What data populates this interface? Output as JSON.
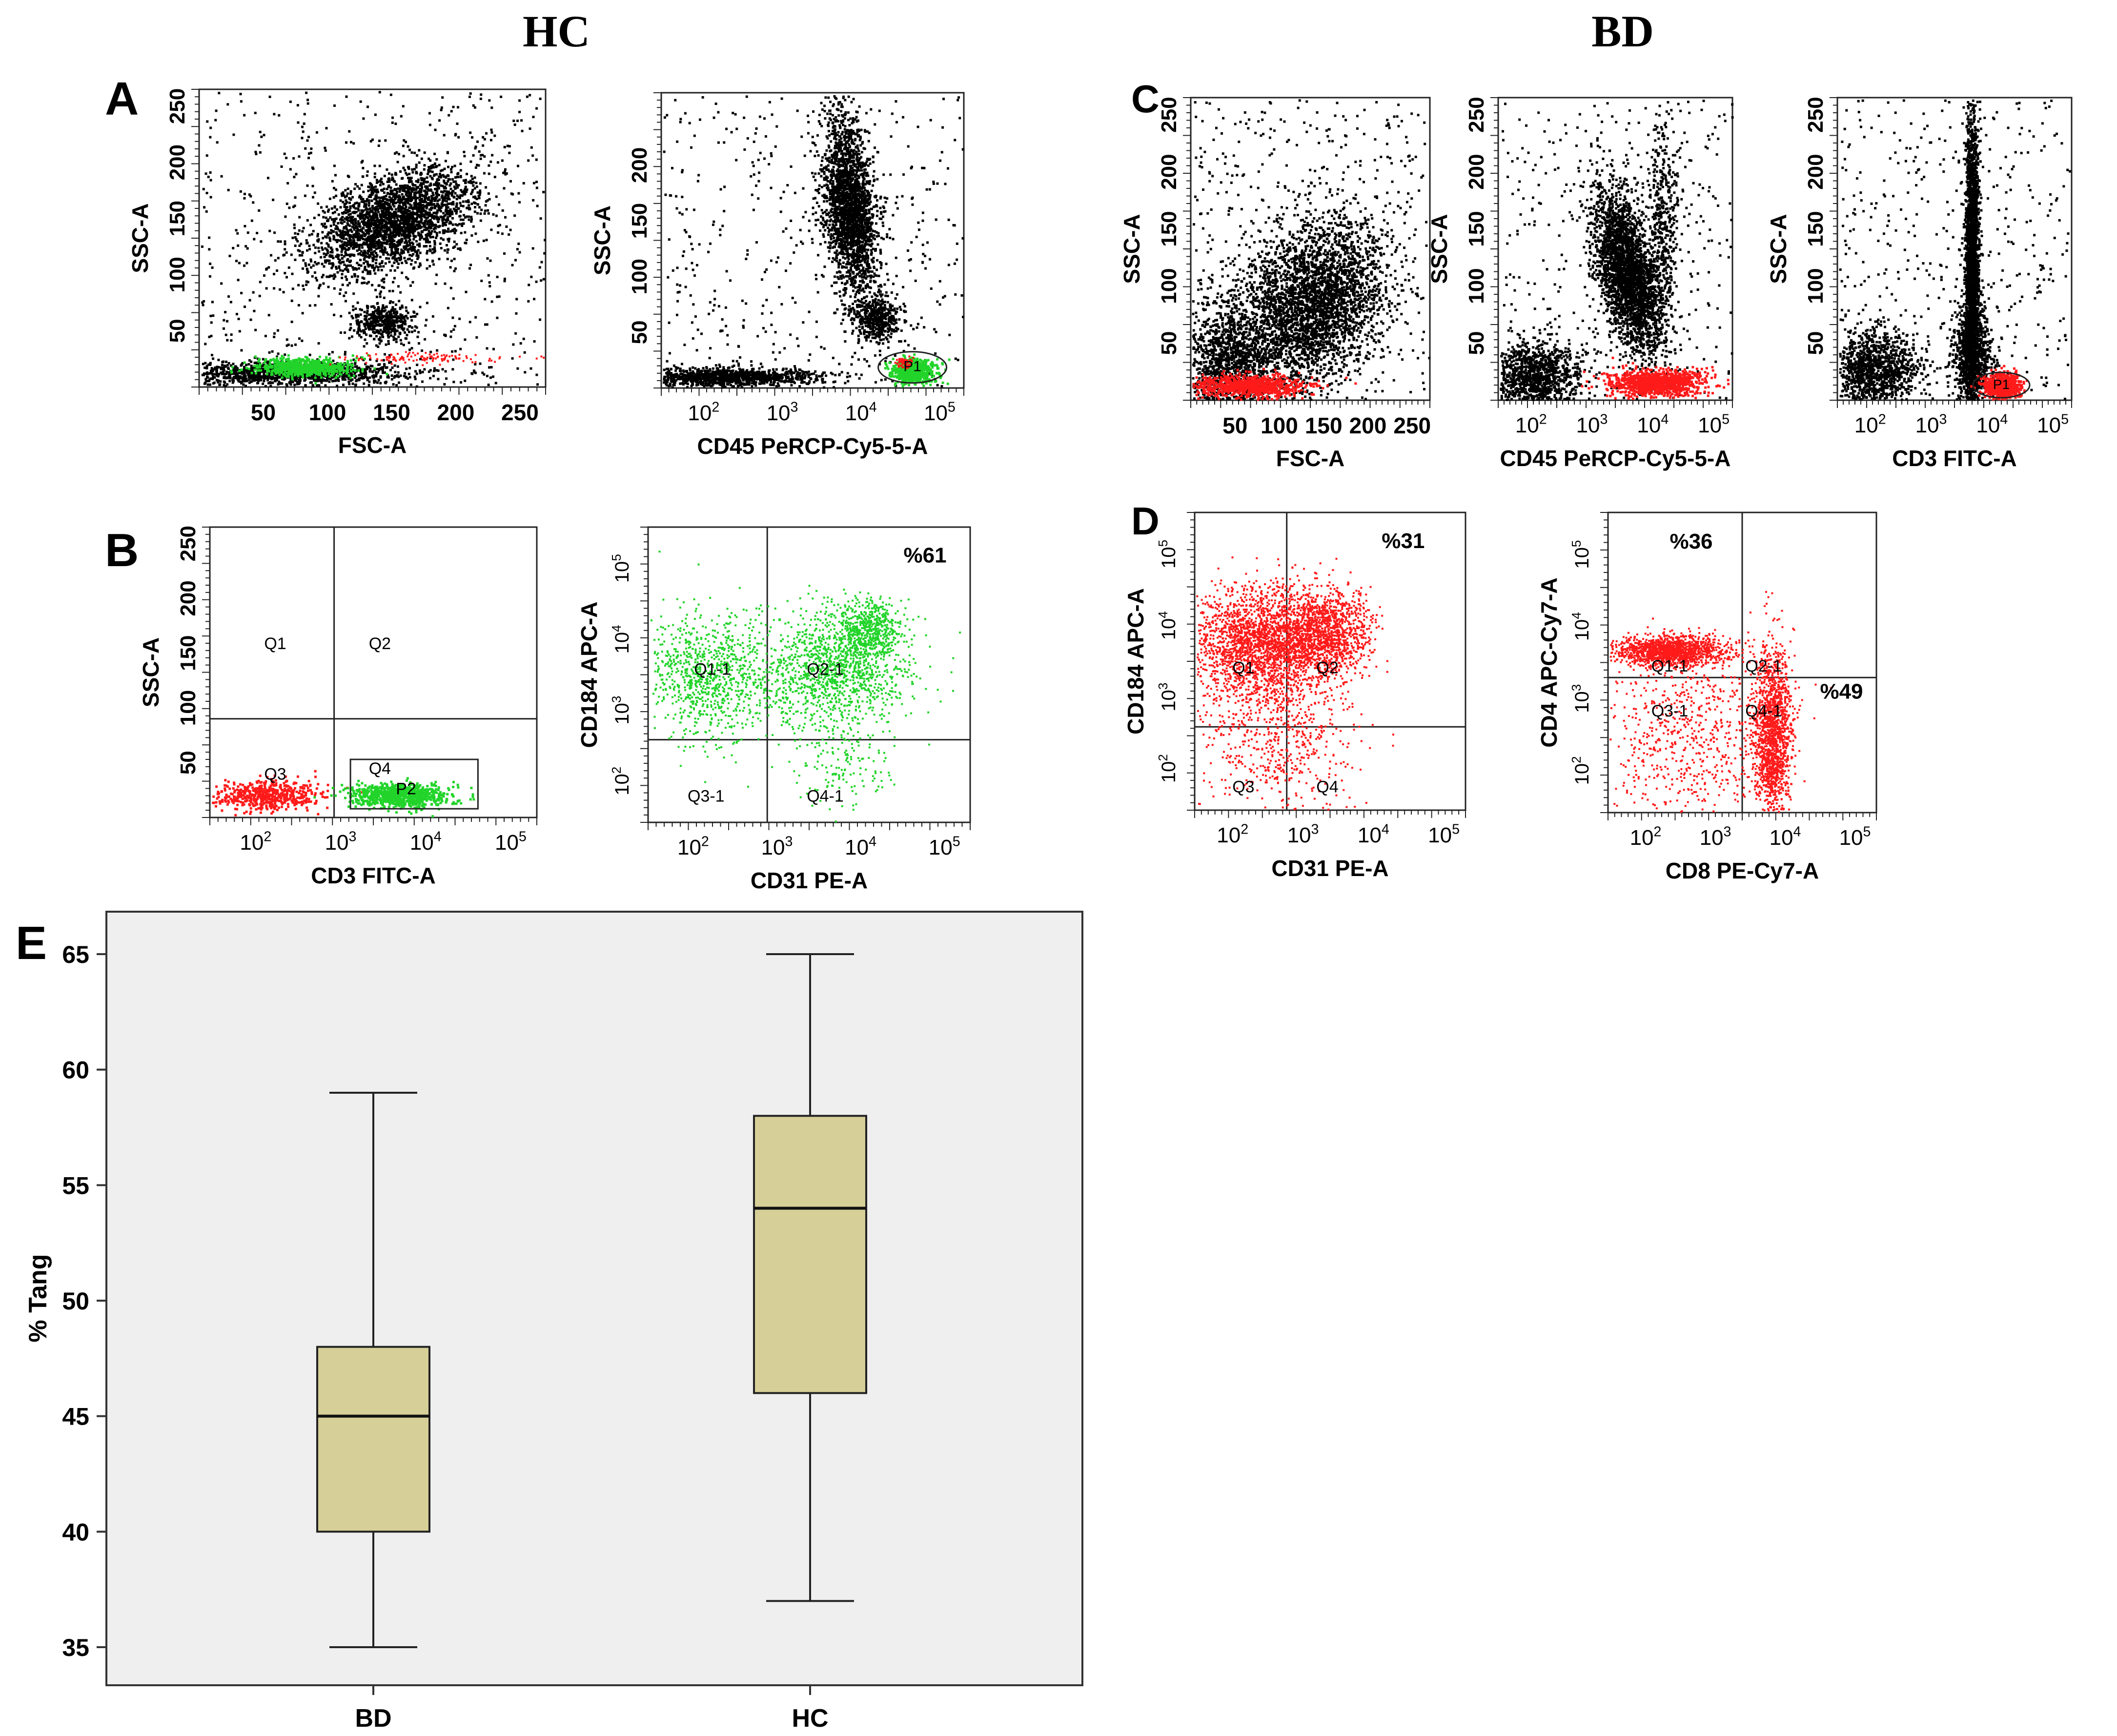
{
  "headers": {
    "hc": "HC",
    "bd": "BD"
  },
  "panel_letters": {
    "a": "A",
    "b": "B",
    "c": "C",
    "d": "D",
    "e": "E"
  },
  "colors": {
    "events": "#000000",
    "green": "#22d42a",
    "red": "#ff1a1a",
    "box_fill": "#d6cf97",
    "plot_bg": "#efefef"
  },
  "log_ticks": [
    "10^2",
    "10^3",
    "10^4",
    "10^5"
  ],
  "panels": {
    "a1": {
      "xlabel": "FSC-A",
      "ylabel": "SSC-A",
      "xticks": [
        "50",
        "100",
        "150",
        "200",
        "250"
      ],
      "yticks": [
        "50",
        "100",
        "150",
        "200",
        "250"
      ]
    },
    "a2": {
      "xlabel": "CD45 PeRCP-Cy5-5-A",
      "ylabel": "SSC-A",
      "yticks": [
        "50",
        "100",
        "150",
        "200"
      ],
      "gate": "P1"
    },
    "b1": {
      "xlabel": "CD3 FITC-A",
      "ylabel": "SSC-A",
      "yticks": [
        "50",
        "100",
        "150",
        "200",
        "250"
      ],
      "quadrants": [
        "Q1",
        "Q2",
        "Q3",
        "Q4"
      ],
      "gate": "P2"
    },
    "b2": {
      "xlabel": "CD31 PE-A",
      "ylabel": "CD184 APC-A",
      "quadrants": [
        "Q1-1",
        "Q2-1",
        "Q3-1",
        "Q4-1"
      ],
      "percent": "%61"
    },
    "c1": {
      "xlabel": "FSC-A",
      "ylabel": "SSC-A",
      "xticks": [
        "50",
        "100",
        "150",
        "200",
        "250"
      ],
      "yticks": [
        "50",
        "100",
        "150",
        "200",
        "250"
      ]
    },
    "c2": {
      "xlabel": "CD45 PeRCP-Cy5-5-A",
      "ylabel": "SSC-A",
      "yticks": [
        "50",
        "100",
        "150",
        "200",
        "250"
      ]
    },
    "c3": {
      "xlabel": "CD3 FITC-A",
      "ylabel": "SSC-A",
      "yticks": [
        "50",
        "100",
        "150",
        "200",
        "250"
      ],
      "gate": "P1"
    },
    "d1": {
      "xlabel": "CD31 PE-A",
      "ylabel": "CD184 APC-A",
      "quadrants": [
        "Q1",
        "Q2",
        "Q3",
        "Q4"
      ],
      "percent": "%31"
    },
    "d2": {
      "xlabel": "CD8 PE-Cy7-A",
      "ylabel": "CD4 APC-Cy7-A",
      "quadrants": [
        "Q1-1",
        "Q2-1",
        "Q3-1",
        "Q4-1"
      ],
      "percent_top": "%36",
      "percent_right": "%49"
    }
  },
  "chart_data": {
    "type": "box",
    "categories": [
      "BD",
      "HC"
    ],
    "ylabel": "% Tang",
    "ylim": [
      35,
      65
    ],
    "yticks": [
      "35",
      "40",
      "45",
      "50",
      "55",
      "60",
      "65"
    ],
    "series": [
      {
        "category": "BD",
        "min": 35,
        "q1": 40,
        "median": 45,
        "q3": 48,
        "max": 59
      },
      {
        "category": "HC",
        "min": 37,
        "q1": 46,
        "median": 54,
        "q3": 58,
        "max": 65
      }
    ]
  }
}
